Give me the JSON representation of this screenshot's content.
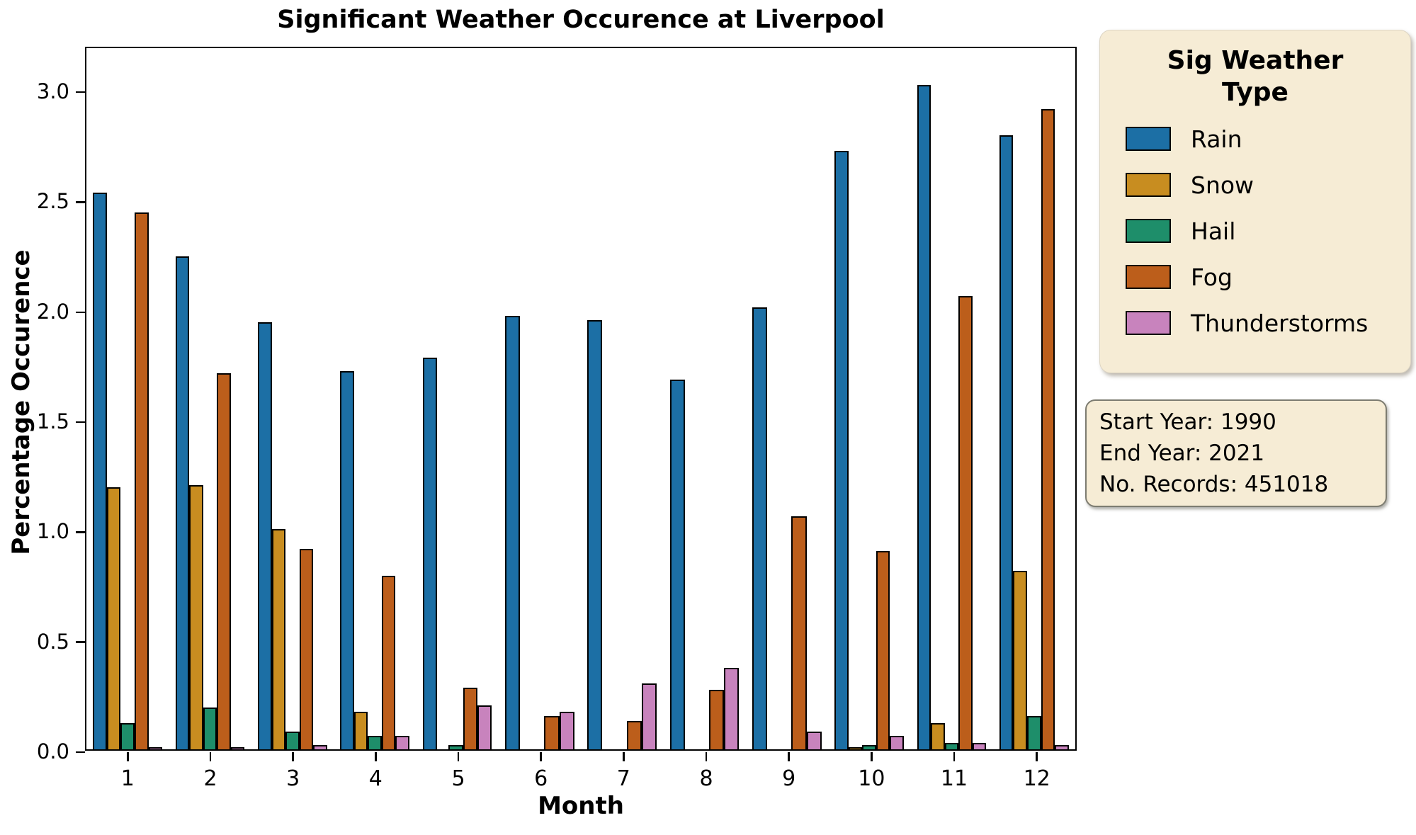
{
  "title": "Significant Weather Occurence at Liverpool",
  "chart_data": {
    "type": "bar",
    "title": "Significant Weather Occurence at Liverpool",
    "xlabel": "Month",
    "ylabel": "Percentage Occurence",
    "categories": [
      "1",
      "2",
      "3",
      "4",
      "5",
      "6",
      "7",
      "8",
      "9",
      "10",
      "11",
      "12"
    ],
    "series": [
      {
        "name": "Rain",
        "color": "#1c6fa5",
        "values": [
          2.53,
          2.24,
          1.94,
          1.72,
          1.78,
          1.97,
          1.95,
          1.68,
          2.01,
          2.72,
          3.02,
          2.79
        ]
      },
      {
        "name": "Snow",
        "color": "#c88d20",
        "values": [
          1.19,
          1.2,
          1.0,
          0.17,
          0,
          0,
          0,
          0,
          0,
          0.01,
          0.12,
          0.81
        ]
      },
      {
        "name": "Hail",
        "color": "#1e8e6a",
        "values": [
          0.12,
          0.19,
          0.08,
          0.06,
          0.02,
          0,
          0,
          0,
          0,
          0.02,
          0.03,
          0.15
        ]
      },
      {
        "name": "Fog",
        "color": "#bc5e1b",
        "values": [
          2.44,
          1.71,
          0.91,
          0.79,
          0.28,
          0.15,
          0.13,
          0.27,
          1.06,
          0.9,
          2.06,
          2.91
        ]
      },
      {
        "name": "Thunderstorms",
        "color": "#c883bd",
        "values": [
          0.01,
          0.01,
          0.02,
          0.06,
          0.2,
          0.17,
          0.3,
          0.37,
          0.08,
          0.06,
          0.03,
          0.02
        ]
      }
    ],
    "ylim": [
      0,
      3.2
    ],
    "yticks": [
      "0.0",
      "0.5",
      "1.0",
      "1.5",
      "2.0",
      "2.5",
      "3.0"
    ],
    "grid": false,
    "legend_position": "outside-right",
    "bar_edge_color": "#000000"
  },
  "legend": {
    "title_line1": "Sig Weather",
    "title_line2": "Type",
    "items": [
      "Rain",
      "Snow",
      "Hail",
      "Fog",
      "Thunderstorms"
    ]
  },
  "info_box": {
    "lines": [
      "Start Year: 1990",
      "End Year: 2021",
      "No. Records: 451018"
    ]
  },
  "colors": {
    "panel_background": "#f6ecd5",
    "info_border": "#7d7c71",
    "axis": "#000000"
  }
}
